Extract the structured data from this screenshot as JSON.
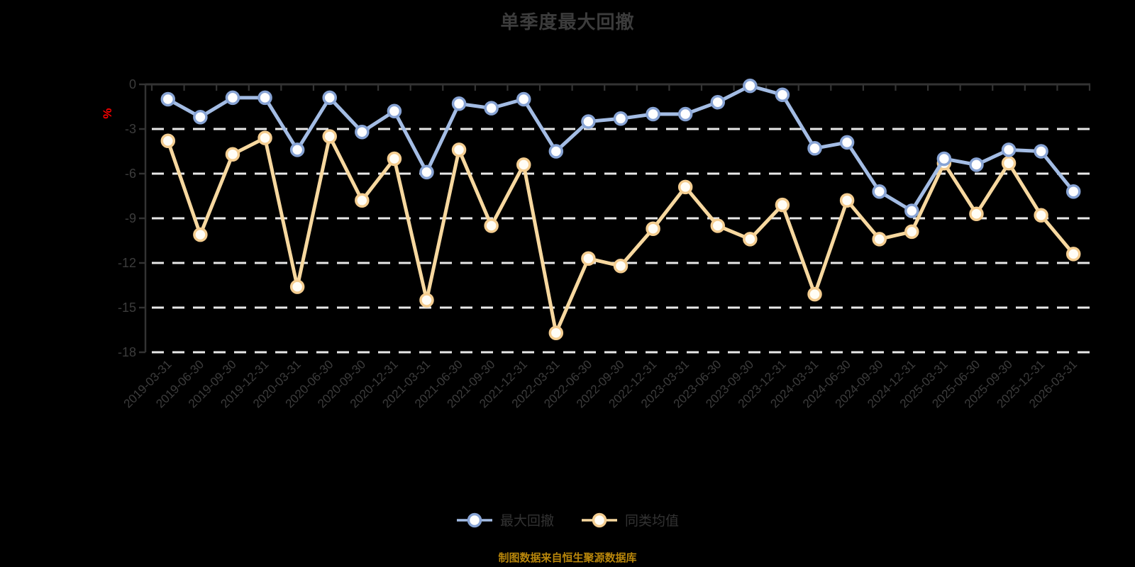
{
  "title": "单季度最大回撤",
  "source_note": "制图数据来自恒生聚源数据库",
  "y_axis_unit": "%",
  "legend": [
    {
      "label": "最大回撤",
      "line_color": "#a3bce4",
      "marker_border": "#87a3d4",
      "marker_fill": "#ffffff"
    },
    {
      "label": "同类均值",
      "line_color": "#f7d89f",
      "marker_border": "#f4cd90",
      "marker_fill": "#fffdf6"
    }
  ],
  "colors": {
    "background": "#000000",
    "title_text": "#3c3c3c",
    "axis_line": "#333333",
    "axis_label": "#3c3c3c",
    "gridline": "#e8e8e8",
    "unit_label": "#ff0000",
    "legend_text": "#333333",
    "source_note_text": "#b8860b"
  },
  "chart_data": {
    "type": "line",
    "title": "单季度最大回撤",
    "ylabel": "%",
    "xlabel": "",
    "ylim": [
      -18,
      0
    ],
    "yticks": [
      0,
      -3,
      -6,
      -9,
      -12,
      -15,
      -18
    ],
    "grid": true,
    "grid_style": "dashed",
    "legend_position": "bottom",
    "x_label_rotation_deg": -45,
    "categories": [
      "2019-03-31",
      "2019-06-30",
      "2019-09-30",
      "2019-12-31",
      "2020-03-31",
      "2020-06-30",
      "2020-09-30",
      "2020-12-31",
      "2021-03-31",
      "2021-06-30",
      "2021-09-30",
      "2021-12-31",
      "2022-03-31",
      "2022-06-30",
      "2022-09-30",
      "2022-12-31",
      "2023-03-31",
      "2023-06-30",
      "2023-09-30",
      "2023-12-31",
      "2024-03-31",
      "2024-06-30",
      "2024-09-30",
      "2024-12-31",
      "2025-03-31",
      "2025-06-30",
      "2025-09-30",
      "2025-12-31",
      "2026-03-31"
    ],
    "series": [
      {
        "name": "最大回撤",
        "values": [
          -1.0,
          -2.2,
          -0.9,
          -0.9,
          -4.4,
          -0.9,
          -3.2,
          -1.8,
          -5.9,
          -1.3,
          -1.6,
          -1.0,
          -4.5,
          -2.5,
          -2.3,
          -2.0,
          -2.0,
          -1.2,
          -0.1,
          -0.7,
          -4.3,
          -3.9,
          -7.2,
          -8.5,
          -5.0,
          -5.4,
          -4.4,
          -4.5,
          -7.2
        ]
      },
      {
        "name": "同类均值",
        "values": [
          -3.8,
          -10.1,
          -4.7,
          -3.6,
          -13.6,
          -3.5,
          -7.8,
          -5.0,
          -14.5,
          -4.4,
          -9.5,
          -5.4,
          -16.7,
          -11.7,
          -12.2,
          -9.7,
          -6.9,
          -9.5,
          -10.4,
          -8.1,
          -14.1,
          -7.8,
          -10.4,
          -9.9,
          -5.3,
          -8.7,
          -5.3,
          -8.8,
          -11.4
        ]
      }
    ]
  }
}
